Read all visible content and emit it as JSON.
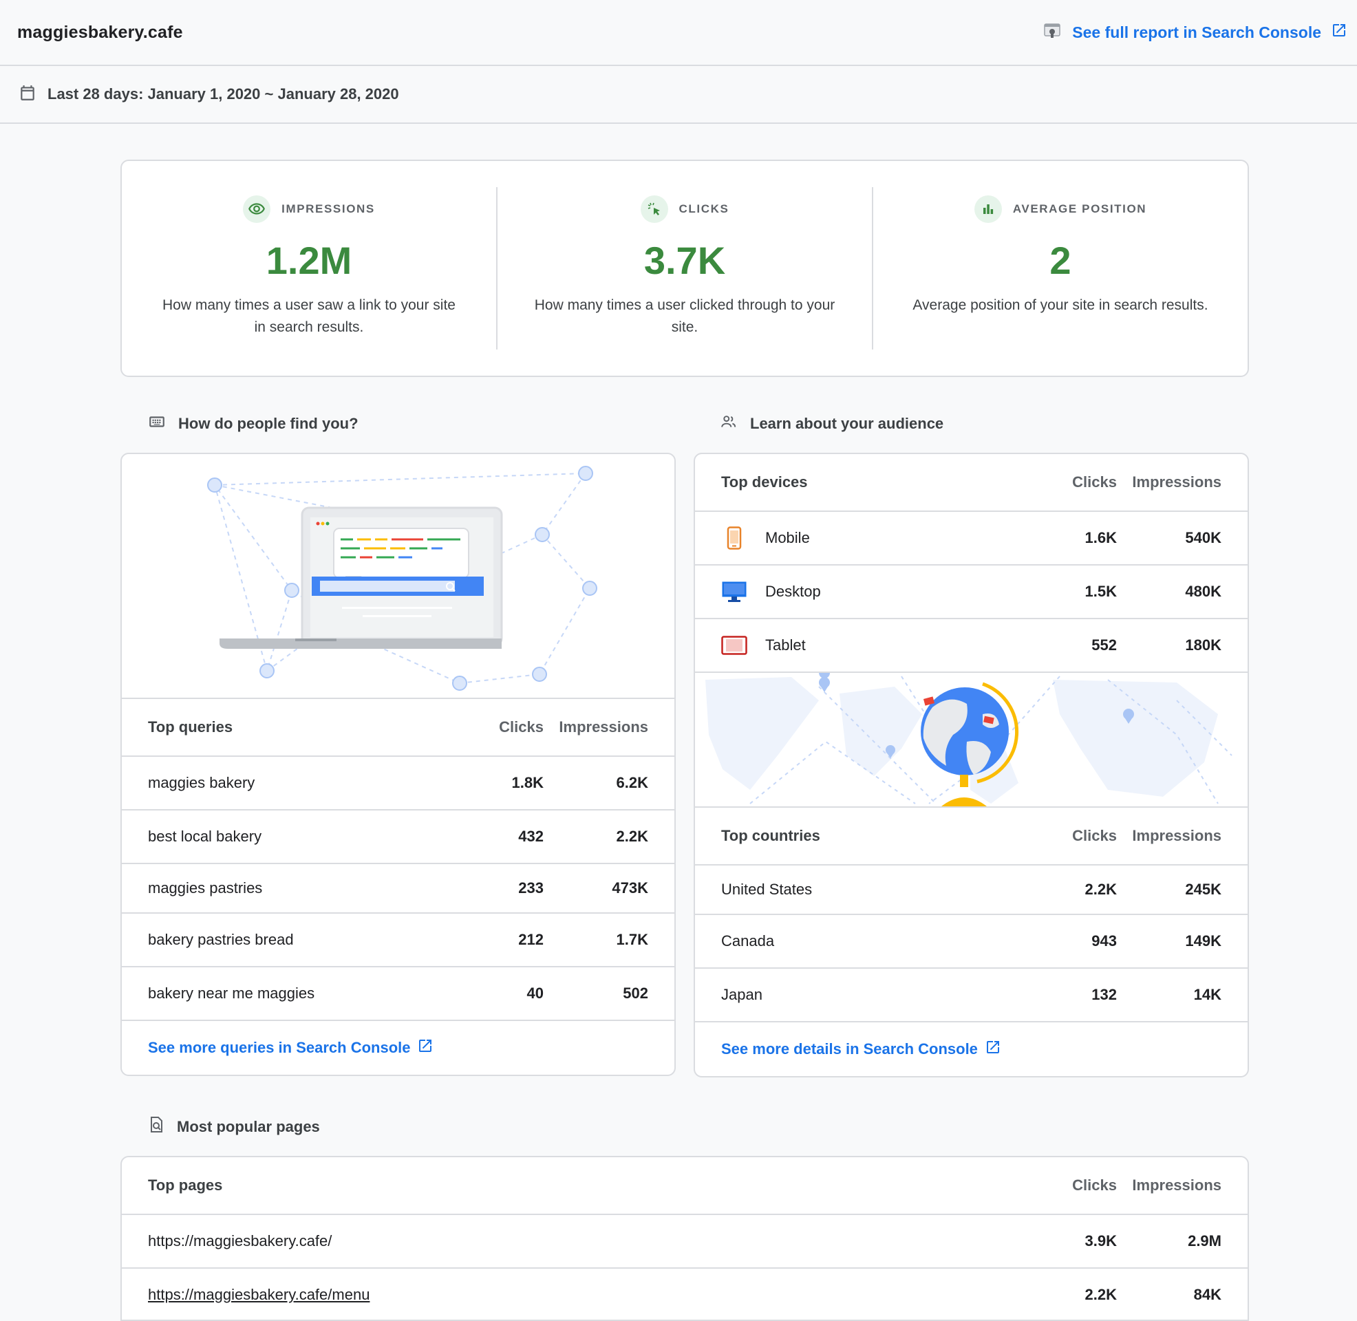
{
  "site": "maggiesbakery.cafe",
  "header": {
    "full_report_label": "See full report in Search Console"
  },
  "date_range": "Last 28 days: January 1, 2020 ~ January 28, 2020",
  "metrics": [
    {
      "label": "IMPRESSIONS",
      "value": "1.2M",
      "description": "How many times a user saw a link to your site in search results.",
      "icon": "eye-icon"
    },
    {
      "label": "CLICKS",
      "value": "3.7K",
      "description": "How many times a user clicked through to your site.",
      "icon": "cursor-click-icon"
    },
    {
      "label": "AVERAGE POSITION",
      "value": "2",
      "description": "Average position of your site in search results.",
      "icon": "bar-chart-icon"
    }
  ],
  "find_section": {
    "title": "How do people find you?",
    "table_title": "Top queries",
    "col_clicks": "Clicks",
    "col_impressions": "Impressions",
    "rows": [
      {
        "label": "maggies bakery",
        "clicks": "1.8K",
        "impressions": "6.2K"
      },
      {
        "label": "best local bakery",
        "clicks": "432",
        "impressions": "2.2K"
      },
      {
        "label": "maggies pastries",
        "clicks": "233",
        "impressions": "473K"
      },
      {
        "label": "bakery pastries bread",
        "clicks": "212",
        "impressions": "1.7K"
      },
      {
        "label": "bakery near me maggies",
        "clicks": "40",
        "impressions": "502"
      }
    ],
    "more_link": "See more queries in Search Console"
  },
  "audience_section": {
    "title": "Learn about your audience",
    "devices_title": "Top devices",
    "col_clicks": "Clicks",
    "col_impressions": "Impressions",
    "devices": [
      {
        "label": "Mobile",
        "clicks": "1.6K",
        "impressions": "540K",
        "icon": "mobile-icon",
        "color": "#e8832a"
      },
      {
        "label": "Desktop",
        "clicks": "1.5K",
        "impressions": "480K",
        "icon": "desktop-icon",
        "color": "#1a73e8"
      },
      {
        "label": "Tablet",
        "clicks": "552",
        "impressions": "180K",
        "icon": "tablet-icon",
        "color": "#c5221f"
      }
    ],
    "countries_title": "Top countries",
    "countries": [
      {
        "label": "United States",
        "clicks": "2.2K",
        "impressions": "245K"
      },
      {
        "label": "Canada",
        "clicks": "943",
        "impressions": "149K"
      },
      {
        "label": "Japan",
        "clicks": "132",
        "impressions": "14K"
      }
    ],
    "more_link": "See more details in Search Console"
  },
  "pages_section": {
    "title": "Most popular pages",
    "table_title": "Top pages",
    "col_clicks": "Clicks",
    "col_impressions": "Impressions",
    "rows": [
      {
        "label": "https://maggiesbakery.cafe/",
        "clicks": "3.9K",
        "impressions": "2.9M"
      },
      {
        "label": "https://maggiesbakery.cafe/menu",
        "clicks": "2.2K",
        "impressions": "84K"
      }
    ]
  },
  "colors": {
    "accent": "#1a73e8",
    "metric_green": "#3b8a3e",
    "border": "#dadce0"
  }
}
